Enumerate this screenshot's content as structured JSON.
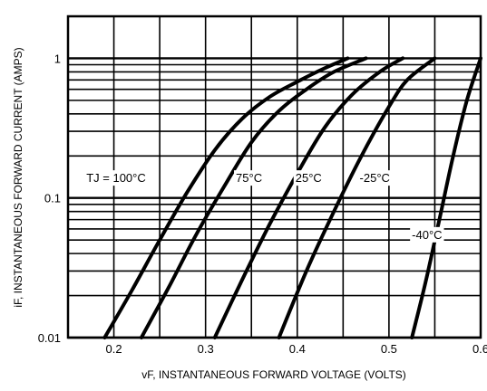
{
  "chart_data": {
    "type": "line",
    "title": "",
    "xlabel": "vF, INSTANTANEOUS FORWARD VOLTAGE (VOLTS)",
    "ylabel": "iF, INSTANTANEOUS FORWARD CURRENT (AMPS)",
    "xlim": [
      0.15,
      0.6
    ],
    "ylim": [
      0.01,
      2
    ],
    "y_scale": "log",
    "grid": true,
    "x_ticks": [
      {
        "value": 0.2,
        "label": "0.2"
      },
      {
        "value": 0.3,
        "label": "0.3"
      },
      {
        "value": 0.4,
        "label": "0.4"
      },
      {
        "value": 0.5,
        "label": "0.5"
      },
      {
        "value": 0.6,
        "label": "0.6"
      }
    ],
    "y_ticks": [
      {
        "value": 0.01,
        "label": "0.01"
      },
      {
        "value": 0.1,
        "label": "0.1"
      },
      {
        "value": 1,
        "label": "1"
      }
    ],
    "series": [
      {
        "name": "TJ = 100°C",
        "label_at": [
          0.17,
          0.13
        ],
        "points": [
          [
            0.19,
            0.01
          ],
          [
            0.22,
            0.022
          ],
          [
            0.25,
            0.05
          ],
          [
            0.28,
            0.11
          ],
          [
            0.31,
            0.22
          ],
          [
            0.34,
            0.37
          ],
          [
            0.37,
            0.53
          ],
          [
            0.4,
            0.68
          ],
          [
            0.43,
            0.85
          ],
          [
            0.455,
            1.0
          ]
        ]
      },
      {
        "name": "75°C",
        "label_at": [
          0.333,
          0.13
        ],
        "points": [
          [
            0.23,
            0.01
          ],
          [
            0.26,
            0.023
          ],
          [
            0.29,
            0.055
          ],
          [
            0.32,
            0.12
          ],
          [
            0.35,
            0.25
          ],
          [
            0.38,
            0.42
          ],
          [
            0.41,
            0.6
          ],
          [
            0.44,
            0.8
          ],
          [
            0.475,
            1.0
          ]
        ]
      },
      {
        "name": "25°C",
        "label_at": [
          0.398,
          0.13
        ],
        "points": [
          [
            0.31,
            0.01
          ],
          [
            0.34,
            0.026
          ],
          [
            0.37,
            0.065
          ],
          [
            0.4,
            0.15
          ],
          [
            0.43,
            0.32
          ],
          [
            0.46,
            0.55
          ],
          [
            0.49,
            0.8
          ],
          [
            0.515,
            1.0
          ]
        ]
      },
      {
        "name": "-25°C",
        "label_at": [
          0.468,
          0.13
        ],
        "points": [
          [
            0.38,
            0.01
          ],
          [
            0.41,
            0.03
          ],
          [
            0.44,
            0.08
          ],
          [
            0.47,
            0.2
          ],
          [
            0.5,
            0.45
          ],
          [
            0.52,
            0.7
          ],
          [
            0.55,
            1.0
          ]
        ]
      },
      {
        "name": "-40°C",
        "label_at": [
          0.525,
          0.051
        ],
        "points": [
          [
            0.525,
            0.01
          ],
          [
            0.54,
            0.025
          ],
          [
            0.555,
            0.07
          ],
          [
            0.57,
            0.2
          ],
          [
            0.585,
            0.5
          ],
          [
            0.6,
            1.0
          ]
        ]
      }
    ]
  }
}
